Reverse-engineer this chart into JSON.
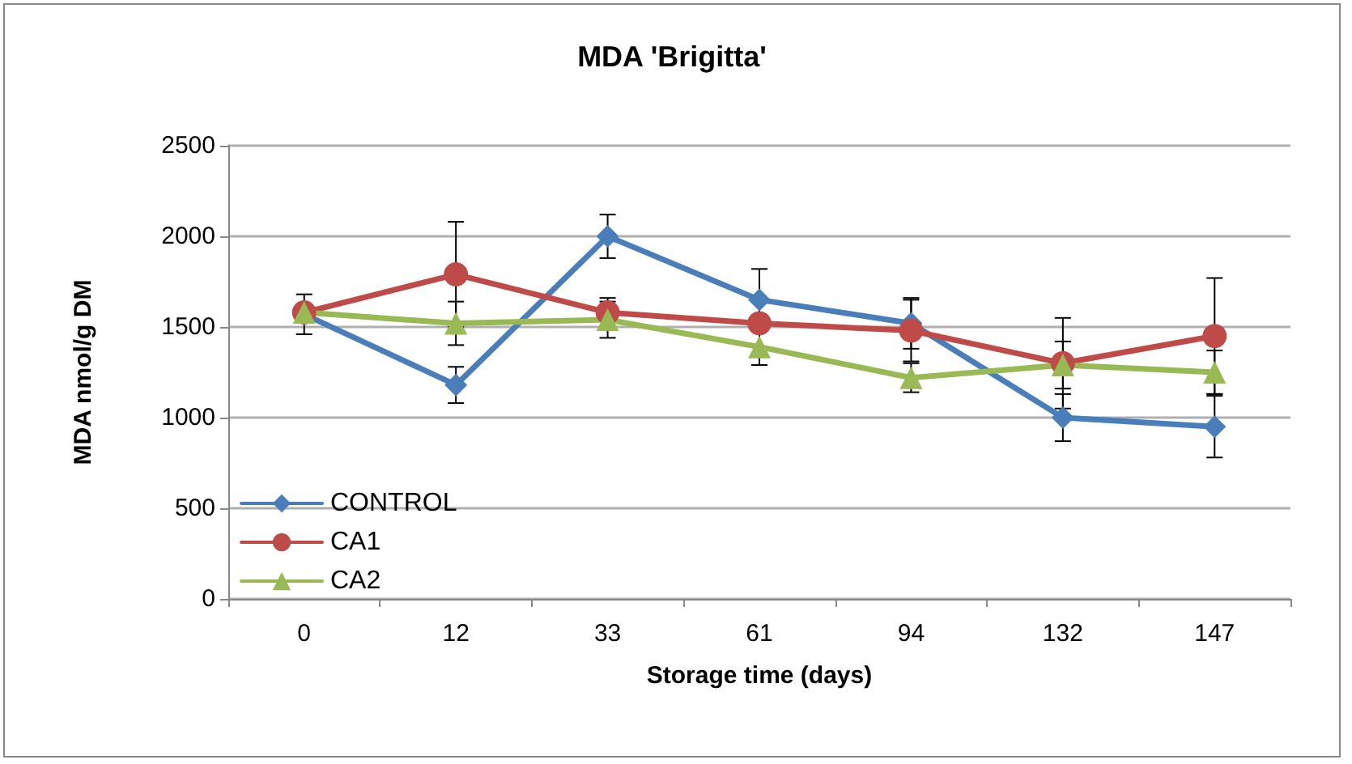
{
  "chart_data": {
    "type": "line",
    "title": "MDA 'Brigitta'",
    "xlabel": "Storage time (days)",
    "ylabel": "MDA nmol/g DM",
    "categories": [
      "0",
      "12",
      "33",
      "61",
      "94",
      "132",
      "147"
    ],
    "series": [
      {
        "name": "CONTROL",
        "color": "#4a7ebb",
        "marker": "diamond",
        "values": [
          1570,
          1180,
          2000,
          1650,
          1520,
          1000,
          950
        ],
        "errors": [
          110,
          100,
          120,
          170,
          140,
          130,
          170
        ]
      },
      {
        "name": "CA1",
        "color": "#be4b48",
        "marker": "circle",
        "values": [
          1580,
          1790,
          1580,
          1520,
          1480,
          1300,
          1450
        ],
        "errors": [
          null,
          290,
          80,
          null,
          170,
          250,
          320
        ]
      },
      {
        "name": "CA2",
        "color": "#98b954",
        "marker": "triangle",
        "values": [
          1580,
          1520,
          1540,
          1390,
          1220,
          1290,
          1250
        ],
        "errors": [
          null,
          120,
          100,
          100,
          80,
          130,
          120
        ]
      }
    ],
    "ylim": [
      0,
      2500
    ],
    "yticks": [
      0,
      500,
      1000,
      1500,
      2000,
      2500
    ],
    "grid": "y",
    "legend": "bottom left",
    "line_style": "solid"
  }
}
